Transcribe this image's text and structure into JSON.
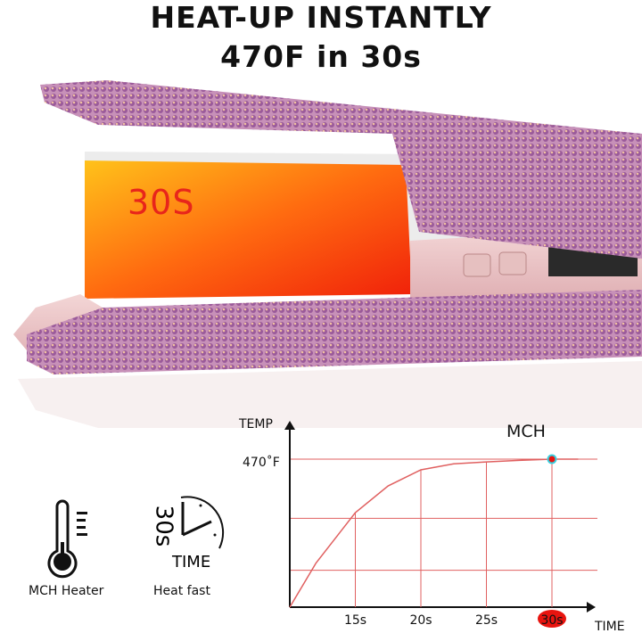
{
  "headline": {
    "line1": "HEAT-UP INSTANTLY",
    "line2": "470F in 30s"
  },
  "product_overlay": {
    "heat_label": "30S",
    "heat_label_color": "#e8251b"
  },
  "features": [
    {
      "icon": "thermometer-icon",
      "label": "MCH Heater"
    },
    {
      "icon": "clock-icon",
      "label": "Heat fast",
      "icon_text_vertical": "30s",
      "icon_text": "TIME"
    }
  ],
  "chart_data": {
    "type": "line",
    "title": "MCH",
    "xlabel": "TIME",
    "ylabel": "TEMP",
    "x_ticks": [
      "15s",
      "20s",
      "25s",
      "30s"
    ],
    "highlighted_tick": "30s",
    "y_ticks": [
      "470˚F"
    ],
    "grid": true,
    "line_color": "#e06060",
    "highlight_color": "#e8140f",
    "marker_color": "#3ad0e0",
    "series": [
      {
        "x": [
          10,
          12,
          15,
          17.5,
          20,
          22.5,
          25,
          27.5,
          30,
          32
        ],
        "y": [
          0,
          140,
          300,
          385,
          436,
          455,
          461,
          466,
          470,
          470
        ]
      }
    ],
    "xlim": [
      10,
      32
    ],
    "marker": {
      "x": 30,
      "y": 470
    }
  }
}
